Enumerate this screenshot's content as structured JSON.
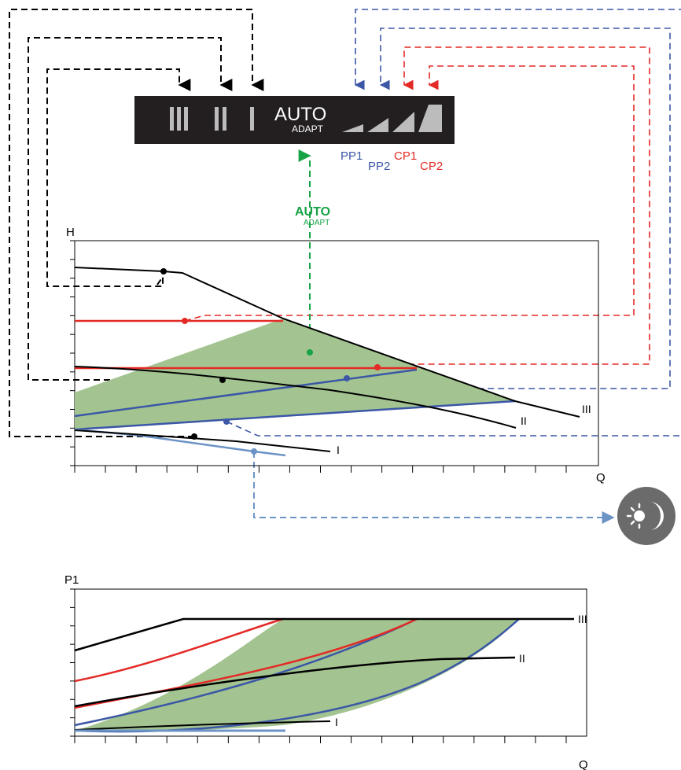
{
  "panel": {
    "roman_labels": [
      "III",
      "II",
      "I"
    ],
    "auto_label": "AUTO",
    "adapt_label": "ADAPT",
    "colors": {
      "background": "#231f20",
      "icons": "#bcbcbc",
      "text": "#ffffff"
    }
  },
  "mode_labels": {
    "pp1": "PP1",
    "pp2": "PP2",
    "cp1": "CP1",
    "cp2": "CP2",
    "auto": "AUTO",
    "adapt": "ADAPT"
  },
  "colors": {
    "speed": "#000000",
    "proportional": "#3b57a6",
    "constant": "#e32a26",
    "auto": "#17a346",
    "night": "#6c93c6",
    "area_fill": "#a3c490",
    "night_icon_bg": "#6b6b6b"
  },
  "top_chart": {
    "y_axis_label": "H",
    "x_axis_label": "Q",
    "curve_labels": {
      "III": "III",
      "II": "II",
      "I": "I"
    },
    "x_ticks": 17,
    "y_ticks": 13
  },
  "bottom_chart": {
    "y_axis_label": "P1",
    "x_axis_label": "Q",
    "curve_labels": {
      "III": "III",
      "II": "II",
      "I": "I"
    },
    "x_ticks": 17,
    "y_ticks": 9
  },
  "icons": {
    "night_mode": "sun-moon-icon"
  }
}
